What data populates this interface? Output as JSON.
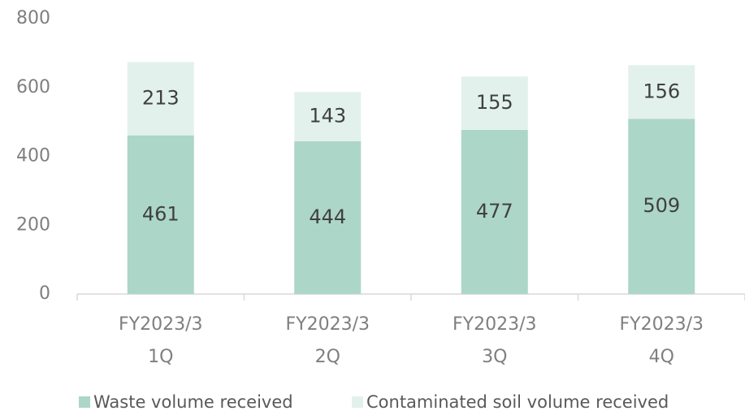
{
  "chart_data": {
    "type": "stacked_bar",
    "categories": [
      [
        "FY2023/3",
        "1Q"
      ],
      [
        "FY2023/3",
        "2Q"
      ],
      [
        "FY2023/3",
        "3Q"
      ],
      [
        "FY2023/3",
        "4Q"
      ]
    ],
    "series": [
      {
        "name": "Waste volume received",
        "color": "#acd6c8",
        "values": [
          461,
          444,
          477,
          509
        ]
      },
      {
        "name": "Contaminated soil volume received",
        "color": "#e2f1ec",
        "values": [
          213,
          143,
          155,
          156
        ]
      }
    ],
    "ylim": [
      0,
      800
    ],
    "yticks": [
      0,
      200,
      400,
      600,
      800
    ],
    "grid": false,
    "legend": "bottom"
  }
}
